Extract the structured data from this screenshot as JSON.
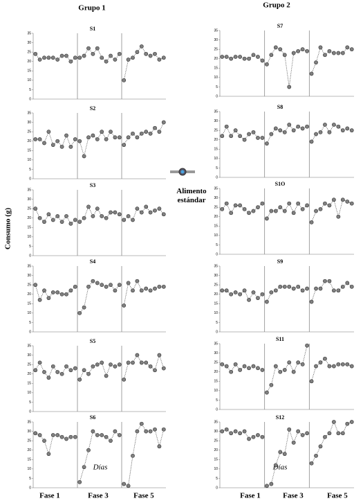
{
  "groups": [
    "Grupo 1",
    "Grupo 2"
  ],
  "y_label": "Consumo (g)",
  "legend": "Alimento estándar",
  "x_label": "Días",
  "phases": [
    "Fase 1",
    "Fase 3",
    "Fase 5"
  ],
  "chart_data": [
    {
      "type": "line",
      "title": "S1",
      "color": "#808080",
      "ylim": [
        0,
        35
      ],
      "yticks": [
        0,
        5,
        10,
        15,
        20,
        25,
        30,
        35
      ],
      "series": [
        {
          "values": [
            24,
            21,
            22,
            22,
            22,
            21,
            23,
            23,
            20,
            22
          ]
        },
        {
          "values": [
            22,
            23,
            27,
            24,
            27,
            22,
            20,
            23,
            21,
            24
          ]
        },
        {
          "values": [
            10,
            21,
            22,
            25,
            28,
            24,
            23,
            24,
            21,
            22
          ]
        }
      ]
    },
    {
      "type": "line",
      "title": "S2",
      "color": "#808080",
      "ylim": [
        0,
        35
      ],
      "yticks": [
        0,
        5,
        10,
        15,
        20,
        25,
        30,
        35
      ],
      "series": [
        {
          "values": [
            21,
            21,
            19,
            25,
            18,
            20,
            17,
            23,
            17,
            21
          ]
        },
        {
          "values": [
            20,
            12,
            22,
            23,
            21,
            25,
            21,
            25,
            22,
            22
          ]
        },
        {
          "values": [
            18,
            22,
            24,
            22,
            24,
            25,
            24,
            27,
            25,
            30
          ]
        }
      ]
    },
    {
      "type": "line",
      "title": "S3",
      "color": "#808080",
      "ylim": [
        0,
        35
      ],
      "yticks": [
        0,
        5,
        10,
        15,
        20,
        25,
        30,
        35
      ],
      "series": [
        {
          "values": [
            25,
            20,
            18,
            22,
            19,
            21,
            18,
            21,
            17,
            19
          ]
        },
        {
          "values": [
            18,
            20,
            26,
            21,
            25,
            21,
            20,
            23,
            23,
            22
          ]
        },
        {
          "values": [
            19,
            21,
            19,
            25,
            23,
            26,
            23,
            24,
            25,
            22
          ]
        }
      ]
    },
    {
      "type": "line",
      "title": "S4",
      "color": "#808080",
      "ylim": [
        0,
        35
      ],
      "yticks": [
        0,
        5,
        10,
        15,
        20,
        25,
        30,
        35
      ],
      "series": [
        {
          "values": [
            25,
            17,
            22,
            18,
            21,
            21,
            20,
            20,
            22,
            24
          ]
        },
        {
          "values": [
            10,
            13,
            24,
            27,
            26,
            25,
            24,
            25,
            22,
            25
          ]
        },
        {
          "values": [
            14,
            26,
            22,
            27,
            22,
            23,
            22,
            23,
            24,
            24
          ]
        }
      ]
    },
    {
      "type": "line",
      "title": "S5",
      "color": "#808080",
      "ylim": [
        0,
        35
      ],
      "yticks": [
        0,
        5,
        10,
        15,
        20,
        25,
        30,
        35
      ],
      "series": [
        {
          "values": [
            22,
            26,
            21,
            18,
            24,
            21,
            20,
            24,
            22,
            23
          ]
        },
        {
          "values": [
            17,
            22,
            20,
            24,
            25,
            26,
            19,
            25,
            24,
            25
          ]
        },
        {
          "values": [
            17,
            26,
            26,
            30,
            26,
            26,
            24,
            22,
            30,
            23
          ]
        }
      ]
    },
    {
      "type": "line",
      "title": "S6",
      "color": "#808080",
      "ylim": [
        0,
        35
      ],
      "yticks": [
        0,
        5,
        10,
        15,
        20,
        25,
        30,
        35
      ],
      "series": [
        {
          "values": [
            29,
            28,
            25,
            18,
            28,
            28,
            27,
            26,
            27,
            27
          ]
        },
        {
          "values": [
            3,
            11,
            20,
            30,
            28,
            28,
            27,
            25,
            30,
            28
          ]
        },
        {
          "values": [
            2,
            1,
            17,
            30,
            34,
            30,
            30,
            31,
            22,
            31
          ]
        }
      ]
    },
    {
      "type": "line",
      "title": "S7",
      "color": "#808080",
      "ylim": [
        0,
        35
      ],
      "yticks": [
        0,
        5,
        10,
        15,
        20,
        25,
        30,
        35
      ],
      "series": [
        {
          "values": [
            21,
            21,
            20,
            21,
            21,
            20,
            20,
            22,
            21,
            19
          ]
        },
        {
          "values": [
            17,
            22,
            26,
            25,
            22,
            5,
            23,
            24,
            25,
            24
          ]
        },
        {
          "values": [
            12,
            18,
            26,
            22,
            24,
            23,
            23,
            23,
            26,
            25
          ]
        }
      ]
    },
    {
      "type": "line",
      "title": "S8",
      "color": "#808080",
      "ylim": [
        0,
        35
      ],
      "yticks": [
        0,
        5,
        10,
        15,
        20,
        25,
        30,
        35
      ],
      "series": [
        {
          "values": [
            22,
            27,
            22,
            25,
            22,
            20,
            23,
            24,
            21,
            21
          ]
        },
        {
          "values": [
            18,
            23,
            26,
            25,
            24,
            28,
            25,
            27,
            26,
            27
          ]
        },
        {
          "values": [
            19,
            23,
            24,
            28,
            24,
            28,
            27,
            25,
            26,
            25
          ]
        }
      ]
    },
    {
      "type": "line",
      "title": "S1O",
      "color": "#808080",
      "ylim": [
        0,
        35
      ],
      "yticks": [
        0,
        5,
        10,
        15,
        20,
        25,
        30,
        35
      ],
      "series": [
        {
          "values": [
            24,
            27,
            22,
            26,
            26,
            24,
            22,
            23,
            25,
            27
          ]
        },
        {
          "values": [
            19,
            23,
            23,
            25,
            23,
            27,
            22,
            27,
            24,
            26
          ]
        },
        {
          "values": [
            17,
            23,
            24,
            27,
            26,
            29,
            20,
            29,
            28,
            27
          ]
        }
      ]
    },
    {
      "type": "line",
      "title": "S9",
      "color": "#808080",
      "ylim": [
        0,
        35
      ],
      "yticks": [
        0,
        5,
        10,
        15,
        20,
        25,
        30,
        35
      ],
      "series": [
        {
          "values": [
            22,
            22,
            20,
            21,
            20,
            22,
            17,
            21,
            18,
            20
          ]
        },
        {
          "values": [
            16,
            21,
            22,
            24,
            24,
            24,
            23,
            24,
            22,
            23
          ]
        },
        {
          "values": [
            16,
            23,
            23,
            27,
            27,
            22,
            22,
            24,
            26,
            24
          ]
        }
      ]
    },
    {
      "type": "line",
      "title": "S11",
      "color": "#808080",
      "ylim": [
        0,
        35
      ],
      "yticks": [
        0,
        5,
        10,
        15,
        20,
        25,
        30,
        35
      ],
      "series": [
        {
          "values": [
            24,
            23,
            20,
            24,
            21,
            23,
            22,
            23,
            22,
            21
          ]
        },
        {
          "values": [
            9,
            13,
            23,
            20,
            21,
            25,
            20,
            25,
            24,
            34
          ]
        },
        {
          "values": [
            15,
            23,
            25,
            27,
            23,
            23,
            24,
            24,
            24,
            23
          ]
        }
      ]
    },
    {
      "type": "line",
      "title": "S12",
      "color": "#808080",
      "ylim": [
        0,
        35
      ],
      "yticks": [
        0,
        5,
        10,
        15,
        20,
        25,
        30,
        35
      ],
      "series": [
        {
          "values": [
            30,
            31,
            29,
            30,
            29,
            30,
            26,
            27,
            28,
            27
          ]
        },
        {
          "values": [
            1,
            2,
            12,
            19,
            18,
            31,
            24,
            30,
            28,
            29
          ]
        },
        {
          "values": [
            13,
            17,
            22,
            27,
            29,
            35,
            29,
            29,
            34,
            35
          ]
        }
      ]
    }
  ]
}
